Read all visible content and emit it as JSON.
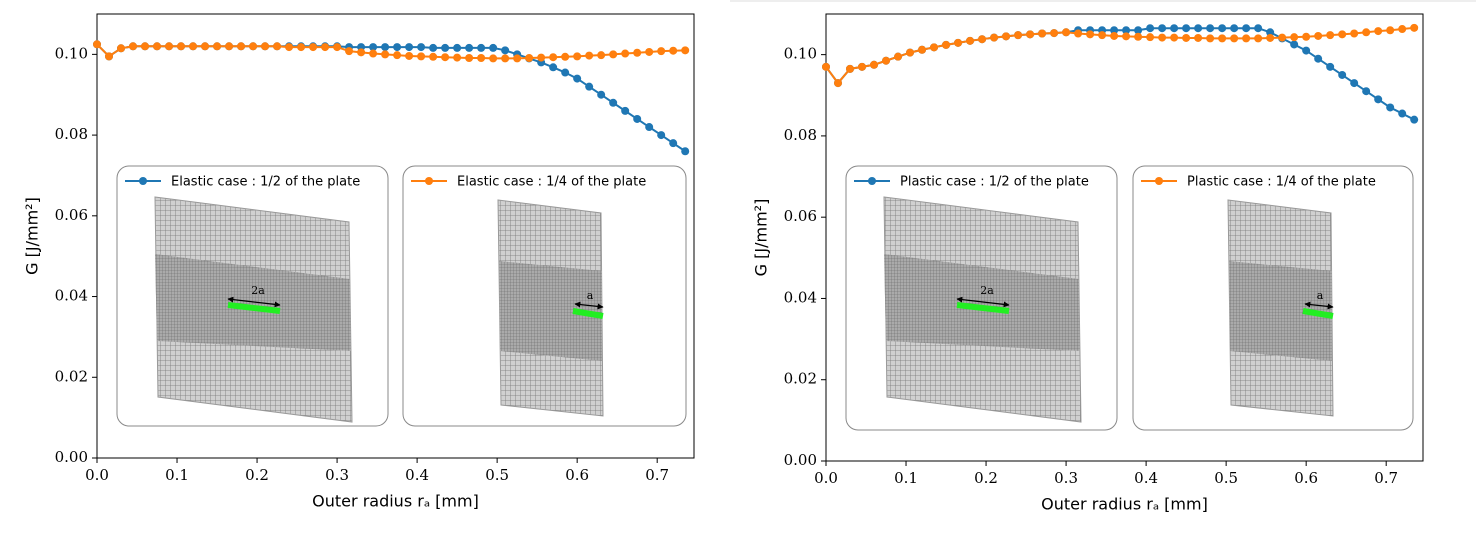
{
  "chart_data": [
    {
      "type": "line",
      "xlabel": "Outer radius rₐ [mm]",
      "ylabel": "G [J/mm²]",
      "xlim": [
        0,
        0.746
      ],
      "ylim": [
        0,
        0.11
      ],
      "xticks": [
        {
          "value": 0,
          "label": "0.0"
        },
        0.1,
        0.2,
        0.3,
        0.4,
        0.5,
        0.6,
        0.7
      ],
      "yticks": [
        {
          "value": 0,
          "label": "0.00"
        },
        0.02,
        0.04,
        0.06,
        0.08,
        {
          "value": 0.1,
          "label": "0.10"
        }
      ],
      "x": [
        0,
        0.015,
        0.03,
        0.045,
        0.06,
        0.075,
        0.09,
        0.105,
        0.12,
        0.135,
        0.15,
        0.165,
        0.18,
        0.195,
        0.21,
        0.225,
        0.24,
        0.255,
        0.27,
        0.285,
        0.3,
        0.315,
        0.33,
        0.345,
        0.36,
        0.375,
        0.39,
        0.405,
        0.42,
        0.435,
        0.45,
        0.465,
        0.48,
        0.495,
        0.51,
        0.525,
        0.54,
        0.555,
        0.57,
        0.585,
        0.6,
        0.615,
        0.63,
        0.645,
        0.66,
        0.675,
        0.69,
        0.705,
        0.72,
        0.735
      ],
      "series": [
        {
          "name": "Elastic case : 1/2 of the plate",
          "color": "#1f77b4",
          "values": [
            0.1025,
            0.0995,
            0.1015,
            0.102,
            0.102,
            0.102,
            0.102,
            0.102,
            0.102,
            0.102,
            0.102,
            0.102,
            0.102,
            0.102,
            0.102,
            0.102,
            0.102,
            0.102,
            0.102,
            0.102,
            0.102,
            0.1018,
            0.1018,
            0.1018,
            0.1018,
            0.1018,
            0.1018,
            0.1018,
            0.1016,
            0.1016,
            0.1016,
            0.1016,
            0.1016,
            0.1016,
            0.101,
            0.1,
            0.099,
            0.098,
            0.0968,
            0.0955,
            0.094,
            0.092,
            0.09,
            0.088,
            0.086,
            0.084,
            0.082,
            0.08,
            0.078,
            0.076
          ]
        },
        {
          "name": "Elastic case : 1/4 of the plate",
          "color": "#ff7f0e",
          "values": [
            0.1025,
            0.0995,
            0.1015,
            0.102,
            0.102,
            0.102,
            0.102,
            0.102,
            0.102,
            0.102,
            0.102,
            0.102,
            0.102,
            0.102,
            0.102,
            0.102,
            0.1018,
            0.1018,
            0.1018,
            0.1018,
            0.1018,
            0.1008,
            0.1005,
            0.1002,
            0.1,
            0.0998,
            0.0996,
            0.0995,
            0.0994,
            0.0993,
            0.0992,
            0.0991,
            0.0991,
            0.099,
            0.099,
            0.099,
            0.0991,
            0.0992,
            0.0993,
            0.0994,
            0.0995,
            0.0997,
            0.0998,
            0.1,
            0.1002,
            0.1004,
            0.1006,
            0.1008,
            0.1009,
            0.101
          ]
        }
      ],
      "annotations": [
        "2a",
        "a"
      ]
    },
    {
      "type": "line",
      "xlabel": "Outer radius rₐ [mm]",
      "ylabel": "G [J/mm²]",
      "xlim": [
        0,
        0.746
      ],
      "ylim": [
        0,
        0.11
      ],
      "xticks": [
        {
          "value": 0,
          "label": "0.0"
        },
        0.1,
        0.2,
        0.3,
        0.4,
        0.5,
        0.6,
        0.7
      ],
      "yticks": [
        {
          "value": 0,
          "label": "0.00"
        },
        0.02,
        0.04,
        0.06,
        0.08,
        {
          "value": 0.1,
          "label": "0.10"
        }
      ],
      "x": [
        0,
        0.015,
        0.03,
        0.045,
        0.06,
        0.075,
        0.09,
        0.105,
        0.12,
        0.135,
        0.15,
        0.165,
        0.18,
        0.195,
        0.21,
        0.225,
        0.24,
        0.255,
        0.27,
        0.285,
        0.3,
        0.315,
        0.33,
        0.345,
        0.36,
        0.375,
        0.39,
        0.405,
        0.42,
        0.435,
        0.45,
        0.465,
        0.48,
        0.495,
        0.51,
        0.525,
        0.54,
        0.555,
        0.57,
        0.585,
        0.6,
        0.615,
        0.63,
        0.645,
        0.66,
        0.675,
        0.69,
        0.705,
        0.72,
        0.735
      ],
      "series": [
        {
          "name": "Plastic case : 1/2 of the plate",
          "color": "#1f77b4",
          "values": [
            0.097,
            0.093,
            0.0965,
            0.097,
            0.0975,
            0.0985,
            0.0995,
            0.1005,
            0.1012,
            0.1018,
            0.1024,
            0.1029,
            0.1034,
            0.1038,
            0.1042,
            0.1045,
            0.1048,
            0.105,
            0.1052,
            0.1053,
            0.1055,
            0.106,
            0.106,
            0.106,
            0.106,
            0.106,
            0.106,
            0.1065,
            0.1065,
            0.1065,
            0.1065,
            0.1065,
            0.1065,
            0.1065,
            0.1065,
            0.1065,
            0.1065,
            0.1055,
            0.104,
            0.1025,
            0.101,
            0.099,
            0.097,
            0.095,
            0.093,
            0.091,
            0.089,
            0.087,
            0.0855,
            0.084
          ]
        },
        {
          "name": "Plastic case : 1/4 of the plate",
          "color": "#ff7f0e",
          "values": [
            0.097,
            0.093,
            0.0965,
            0.097,
            0.0975,
            0.0985,
            0.0995,
            0.1005,
            0.1012,
            0.1018,
            0.1024,
            0.1029,
            0.1034,
            0.1038,
            0.1042,
            0.1045,
            0.1048,
            0.105,
            0.1052,
            0.1053,
            0.1055,
            0.1052,
            0.105,
            0.1048,
            0.1046,
            0.1045,
            0.1044,
            0.1043,
            0.1042,
            0.1042,
            0.1041,
            0.1041,
            0.104,
            0.104,
            0.104,
            0.104,
            0.104,
            0.1041,
            0.1042,
            0.1043,
            0.1044,
            0.1046,
            0.1048,
            0.105,
            0.1052,
            0.1055,
            0.1058,
            0.106,
            0.1063,
            0.1066
          ]
        }
      ],
      "annotations": [
        "2a",
        "a"
      ]
    }
  ]
}
